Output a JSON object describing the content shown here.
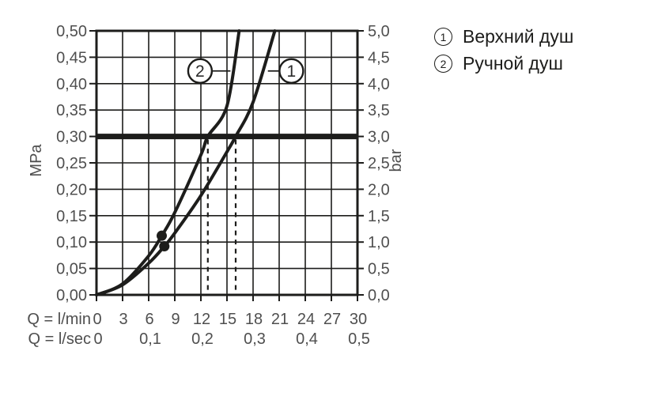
{
  "legend": {
    "items": [
      {
        "num": "1",
        "label": "Верхний душ"
      },
      {
        "num": "2",
        "label": "Ручной душ"
      }
    ]
  },
  "chart_data": {
    "type": "line",
    "title": "",
    "x_axis": {
      "label_lmin": "Q = l/min",
      "label_lsec": "Q = l/sec",
      "range_lmin": [
        0,
        30
      ],
      "lmin_ticks": [
        {
          "q": 0,
          "label": "0"
        },
        {
          "q": 3,
          "label": "3"
        },
        {
          "q": 6,
          "label": "6"
        },
        {
          "q": 9,
          "label": "9"
        },
        {
          "q": 12,
          "label": "12"
        },
        {
          "q": 15,
          "label": "15"
        },
        {
          "q": 18,
          "label": "18"
        },
        {
          "q": 21,
          "label": "21"
        },
        {
          "q": 24,
          "label": "24"
        },
        {
          "q": 27,
          "label": "27"
        },
        {
          "q": 30,
          "label": "30"
        }
      ],
      "lsec_ticks": [
        {
          "q": 0,
          "label": "0"
        },
        {
          "q": 6,
          "label": "0,1"
        },
        {
          "q": 12,
          "label": "0,2"
        },
        {
          "q": 18,
          "label": "0,3"
        },
        {
          "q": 24,
          "label": "0,4"
        },
        {
          "q": 30,
          "label": "0,5"
        }
      ]
    },
    "y_axis_left": {
      "label": "MPa",
      "range": [
        0,
        0.5
      ],
      "ticks": [
        {
          "p": 0.5,
          "label": "0,50"
        },
        {
          "p": 0.45,
          "label": "0,45"
        },
        {
          "p": 0.4,
          "label": "0,40"
        },
        {
          "p": 0.35,
          "label": "0,35"
        },
        {
          "p": 0.3,
          "label": "0,30"
        },
        {
          "p": 0.25,
          "label": "0,25"
        },
        {
          "p": 0.2,
          "label": "0,20"
        },
        {
          "p": 0.15,
          "label": "0,15"
        },
        {
          "p": 0.1,
          "label": "0,10"
        },
        {
          "p": 0.05,
          "label": "0,05"
        },
        {
          "p": 0.0,
          "label": "0,00"
        }
      ]
    },
    "y_axis_right": {
      "label": "bar",
      "range": [
        0,
        5
      ],
      "ticks": [
        {
          "p": 0.5,
          "label": "5,0"
        },
        {
          "p": 0.45,
          "label": "4,5"
        },
        {
          "p": 0.4,
          "label": "4,0"
        },
        {
          "p": 0.35,
          "label": "3,5"
        },
        {
          "p": 0.3,
          "label": "3,0"
        },
        {
          "p": 0.25,
          "label": "2,5"
        },
        {
          "p": 0.2,
          "label": "2,0"
        },
        {
          "p": 0.15,
          "label": "1,5"
        },
        {
          "p": 0.1,
          "label": "1,0"
        },
        {
          "p": 0.05,
          "label": "0,5"
        },
        {
          "p": 0.0,
          "label": "0,0"
        }
      ]
    },
    "grid": true,
    "series": [
      {
        "id": "1",
        "name": "Верхний душ",
        "points": [
          [
            0,
            0
          ],
          [
            3,
            0.019
          ],
          [
            6,
            0.06
          ],
          [
            7.8,
            0.092
          ],
          [
            9,
            0.117
          ],
          [
            12,
            0.188
          ],
          [
            15,
            0.271
          ],
          [
            16,
            0.3
          ],
          [
            18,
            0.365
          ],
          [
            20.5,
            0.5
          ]
        ],
        "marker": [
          7.8,
          0.092
        ]
      },
      {
        "id": "2",
        "name": "Ручной душ",
        "points": [
          [
            0,
            0
          ],
          [
            3,
            0.021
          ],
          [
            6,
            0.074
          ],
          [
            7.5,
            0.112
          ],
          [
            9,
            0.156
          ],
          [
            12,
            0.265
          ],
          [
            12.8,
            0.3
          ],
          [
            15,
            0.358
          ],
          [
            16.4,
            0.5
          ]
        ],
        "marker": [
          7.5,
          0.112
        ]
      }
    ],
    "reference_line_mpa": 0.3,
    "dashed_guides_lmin": [
      12.8,
      16
    ],
    "callouts": [
      {
        "label": "2",
        "q": 11.9,
        "p": 0.424,
        "attach_q": 15.4,
        "side": "right"
      },
      {
        "label": "1",
        "q": 22.4,
        "p": 0.424,
        "attach_q": 19.7,
        "side": "left"
      }
    ],
    "colors": {
      "line": "#1d1d1b",
      "text": "#4f4f4f",
      "background": "#ffffff"
    }
  }
}
